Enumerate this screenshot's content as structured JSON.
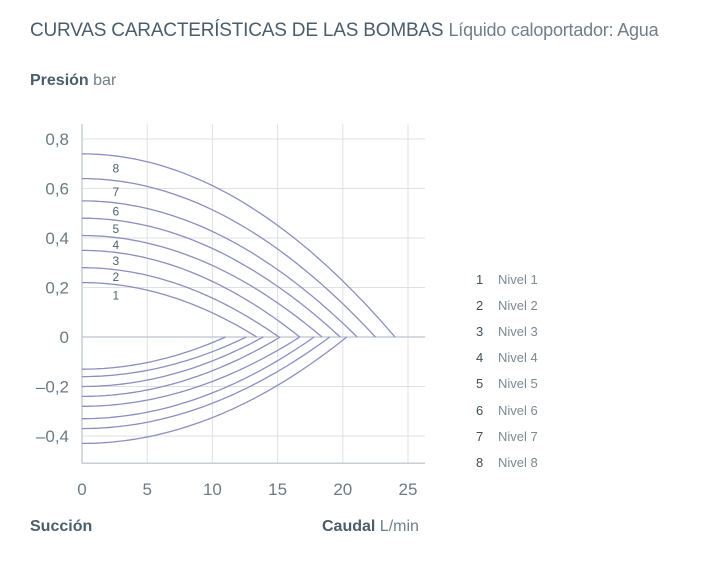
{
  "header": {
    "title": "CURVAS CARACTERÍSTICAS DE LAS BOMBAS",
    "subtitle": "Líquido caloportador: Agua"
  },
  "chart_data": {
    "type": "line",
    "ylabel": {
      "name": "Presión",
      "unit": "bar"
    },
    "xlabel": {
      "name": "Caudal",
      "unit": "L/min"
    },
    "bottom_left_label": "Succión",
    "xlim": [
      0,
      26.3
    ],
    "ylim": [
      -0.51,
      0.86
    ],
    "xticks": [
      0,
      5,
      10,
      15,
      20,
      25
    ],
    "xtick_labels": [
      "0",
      "5",
      "10",
      "15",
      "20",
      "25"
    ],
    "yticks": [
      0.8,
      0.6,
      0.4,
      0.2,
      0,
      -0.2,
      -0.4
    ],
    "ytick_labels": [
      "0,8",
      "0,6",
      "0,4",
      "0,2",
      "0",
      "–0,2",
      "–0,4"
    ],
    "grid": true,
    "legend_placement": "right",
    "line_color": "#8a8fc0",
    "series": [
      {
        "id": "1",
        "name": "Nivel 1",
        "pressure_max_bar": 0.22,
        "pressure_flow_max": 13.4,
        "suction_min_bar": -0.13,
        "suction_flow_max": 11.0
      },
      {
        "id": "2",
        "name": "Nivel 2",
        "pressure_max_bar": 0.28,
        "pressure_flow_max": 15.1,
        "suction_min_bar": -0.16,
        "suction_flow_max": 12.6
      },
      {
        "id": "3",
        "name": "Nivel 3",
        "pressure_max_bar": 0.35,
        "pressure_flow_max": 16.7,
        "suction_min_bar": -0.2,
        "suction_flow_max": 13.9
      },
      {
        "id": "4",
        "name": "Nivel 4",
        "pressure_max_bar": 0.41,
        "pressure_flow_max": 18.4,
        "suction_min_bar": -0.24,
        "suction_flow_max": 15.2
      },
      {
        "id": "5",
        "name": "Nivel 5",
        "pressure_max_bar": 0.48,
        "pressure_flow_max": 19.8,
        "suction_min_bar": -0.28,
        "suction_flow_max": 16.7
      },
      {
        "id": "6",
        "name": "Nivel 6",
        "pressure_max_bar": 0.55,
        "pressure_flow_max": 21.1,
        "suction_min_bar": -0.33,
        "suction_flow_max": 17.8
      },
      {
        "id": "7",
        "name": "Nivel 7",
        "pressure_max_bar": 0.64,
        "pressure_flow_max": 22.5,
        "suction_min_bar": -0.37,
        "suction_flow_max": 19.0
      },
      {
        "id": "8",
        "name": "Nivel 8",
        "pressure_max_bar": 0.74,
        "pressure_flow_max": 24.0,
        "suction_min_bar": -0.43,
        "suction_flow_max": 20.3
      }
    ]
  }
}
